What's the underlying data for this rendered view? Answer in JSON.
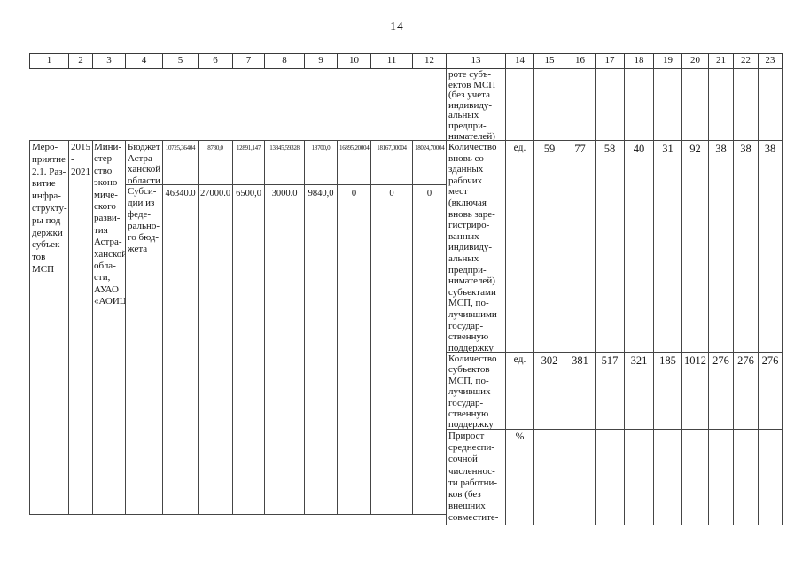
{
  "page_number": "14",
  "table": {
    "header_columns": [
      "1",
      "2",
      "3",
      "4",
      "5",
      "6",
      "7",
      "8",
      "9",
      "10",
      "11",
      "12",
      "13",
      "14",
      "15",
      "16",
      "17",
      "18",
      "19",
      "20",
      "21",
      "22",
      "23"
    ],
    "carryover_row": {
      "indicator": "роте субъ-\nектов МСП\n(без учета\nиндивиду-\nальных\nпредпри-\nнимателей)"
    },
    "measure": {
      "name": "Меро-\nприятие\n2.1. Раз-\nвитие\nинфра-\nструкту-\nры под-\nдержки\nсубъек-\nтов МСП",
      "period": "2015\n-\n2021",
      "executor": "Мини-\nстер-\nство\nэконо-\nмиче-\nского\nразви-\nтия\nАстра-\nханской\nобла-\nсти,\nАУАО\n«АОИЦ»",
      "funding_sources": [
        {
          "source": "Бюджет\nАстра-\nханской\nобласти",
          "values": [
            "10725,36404",
            "8730,0",
            "12891,147",
            "13845,59328",
            "18700,0",
            "16895,20004",
            "18167,00004",
            "18024,70004"
          ]
        },
        {
          "source": "Субси-\nдии из\nфеде-\nрально-\nго бюд-\nжета",
          "values": [
            "46340.0",
            "27000.0",
            "6500,0",
            "3000.0",
            "9840,0",
            "0",
            "0",
            "0"
          ]
        }
      ]
    },
    "indicator_rows": [
      {
        "indicator": "Количество\nвновь со-\nзданных\nрабочих\nмест\n(включая\nвновь заре-\nгистриро-\nванных\nиндивиду-\nальных\nпредпри-\nнимателей)\nсубъектами\nМСП, по-\nлучившими\nгосудар-\nственную\nподдержку",
        "unit": "ед.",
        "values": [
          "59",
          "77",
          "58",
          "40",
          "31",
          "92",
          "38",
          "38",
          "38"
        ]
      },
      {
        "indicator": "Количество\nсубъектов\nМСП, по-\nлучивших\nгосудар-\nственную\nподдержку",
        "unit": "ед.",
        "values": [
          "302",
          "381",
          "517",
          "321",
          "185",
          "1012",
          "276",
          "276",
          "276"
        ]
      },
      {
        "indicator": "Прирост\nсреднеспи-\nсочной\nчисленнос-\nти работни-\nков (без\nвнешних\nсовместите-",
        "unit": "%",
        "values": [
          "",
          "",
          "",
          "",
          "",
          "",
          "",
          "",
          ""
        ]
      }
    ]
  }
}
